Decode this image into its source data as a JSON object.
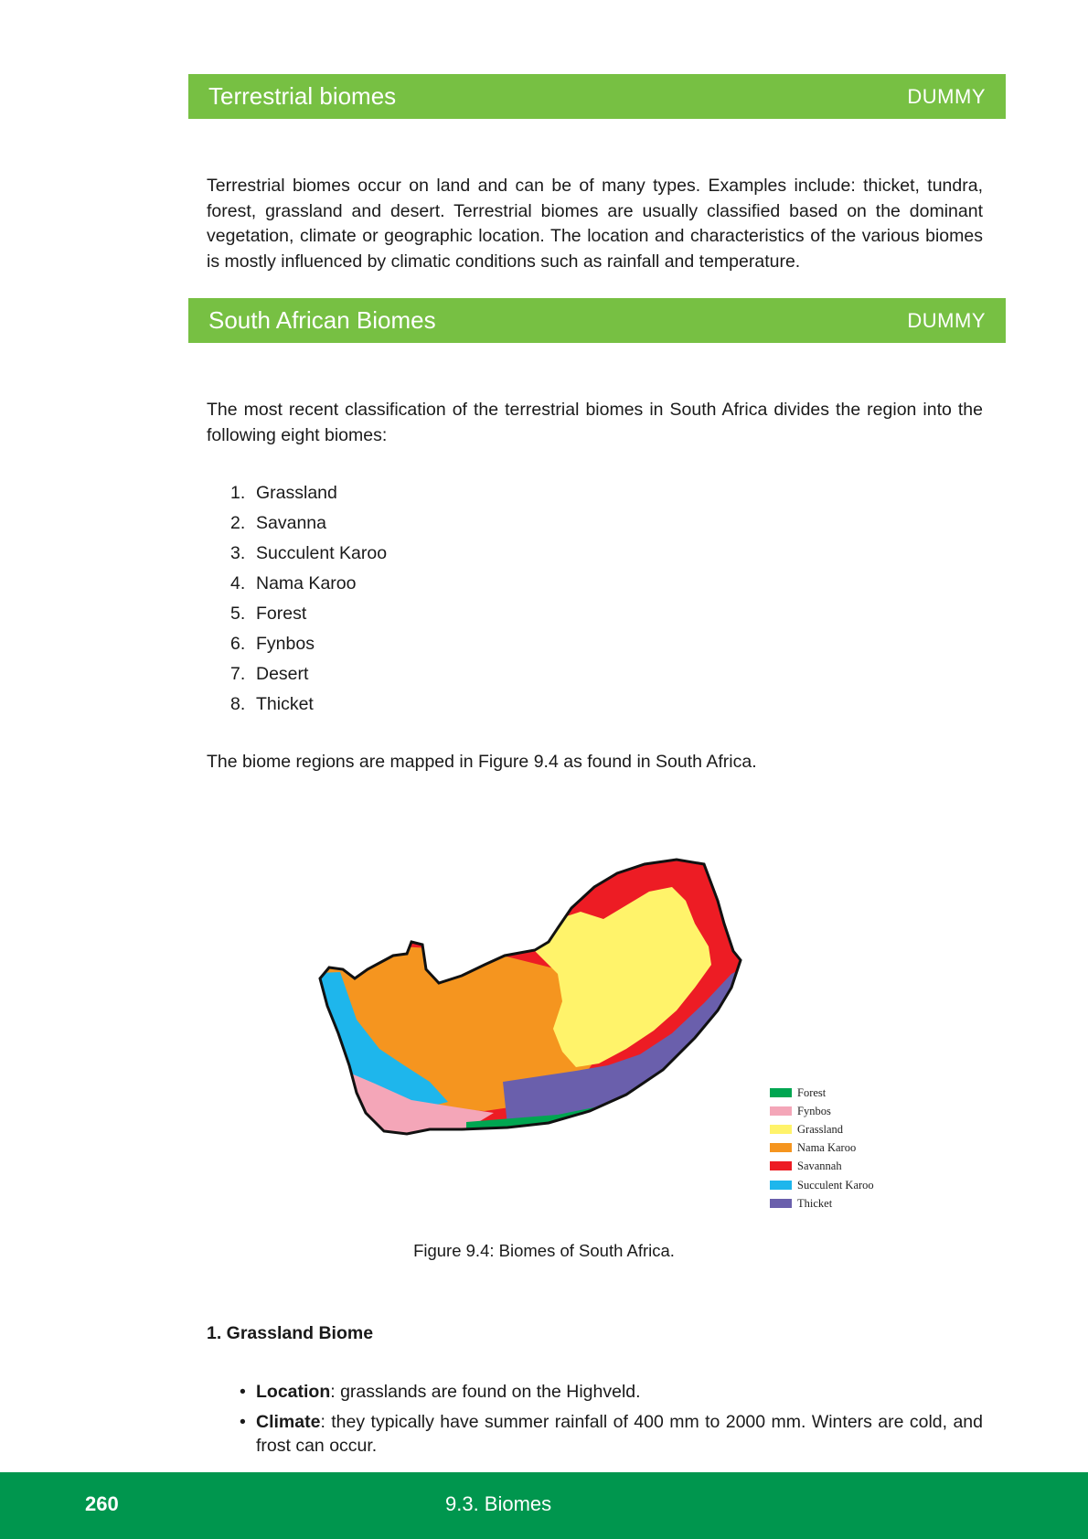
{
  "sections": [
    {
      "title": "Terrestrial biomes",
      "tag": "DUMMY"
    },
    {
      "title": "South African Biomes",
      "tag": "DUMMY"
    }
  ],
  "paragraphs": {
    "terrestrial": "Terrestrial biomes occur on land and can be of many types. Examples include: thicket, tundra, forest, grassland and desert. Terrestrial biomes are usually classified based on the dominant vegetation, climate or geographic location. The location and characteristics of the various biomes is mostly influenced by climatic conditions such as rainfall and temperature.",
    "classification": "The most recent classification of the terrestrial biomes in South Africa divides the region into the following eight biomes:",
    "mapped": "The biome regions are mapped in Figure 9.4 as found in South Africa."
  },
  "biome_list": [
    {
      "num": "1.",
      "label": "Grassland"
    },
    {
      "num": "2.",
      "label": "Savanna"
    },
    {
      "num": "3.",
      "label": "Succulent Karoo"
    },
    {
      "num": "4.",
      "label": "Nama Karoo"
    },
    {
      "num": "5.",
      "label": "Forest"
    },
    {
      "num": "6.",
      "label": "Fynbos"
    },
    {
      "num": "7.",
      "label": "Desert"
    },
    {
      "num": "8.",
      "label": "Thicket"
    }
  ],
  "figure": {
    "caption": "Figure 9.4: Biomes of South Africa.",
    "legend": [
      {
        "label": "Forest",
        "color": "#00a651"
      },
      {
        "label": "Fynbos",
        "color": "#f4a6b8"
      },
      {
        "label": "Grassland",
        "color": "#fff36a"
      },
      {
        "label": "Nama Karoo",
        "color": "#f5951f"
      },
      {
        "label": "Savannah",
        "color": "#ed1c24"
      },
      {
        "label": "Succulent Karoo",
        "color": "#1eb6ec"
      },
      {
        "label": "Thicket",
        "color": "#6a5fac"
      }
    ]
  },
  "grassland_biome": {
    "heading": "1. Grassland Biome",
    "location_label": "Location",
    "location_text": ": grasslands are found on the Highveld.",
    "climate_label": "Climate",
    "climate_text": ": they typically have summer rainfall of 400 mm to 2000 mm. Winters are cold, and frost can occur."
  },
  "footer": {
    "page_number": "260",
    "chapter": "9.3.   Biomes"
  },
  "colors": {
    "section_bar": "#77c043",
    "footer_bar": "#00964e"
  }
}
